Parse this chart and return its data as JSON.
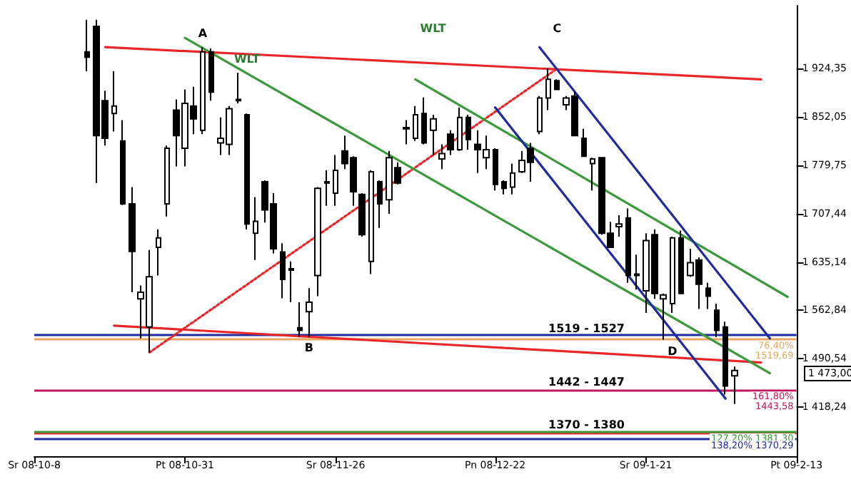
{
  "chart_data": {
    "type": "candlestick",
    "categories": [
      "Sr 08-10-8",
      null,
      null,
      null,
      null,
      null,
      null,
      null,
      null,
      null,
      null,
      null,
      null,
      null,
      null,
      null,
      null,
      "Pt 08-10-31",
      null,
      null,
      null,
      null,
      null,
      null,
      null,
      null,
      null,
      null,
      null,
      null,
      null,
      null,
      null,
      null,
      "Sr 08-11-26",
      null,
      null,
      null,
      null,
      null,
      null,
      null,
      null,
      null,
      null,
      null,
      null,
      null,
      null,
      null,
      null,
      null,
      "Pn 08-12-22",
      null,
      null,
      null,
      null,
      null,
      null,
      null,
      null,
      null,
      null,
      null,
      null,
      null,
      null,
      null,
      null,
      "Sr 09-1-21",
      null,
      null,
      null,
      null,
      null,
      null,
      null,
      null,
      null,
      null,
      null,
      null,
      null,
      null,
      null,
      null,
      "Pt 09-2-13"
    ],
    "series": [
      {
        "type": "candlestick",
        "color": "#000000",
        "ohlc": [
          null,
          null,
          null,
          null,
          null,
          null,
          [
            1949,
            1997,
            1920,
            1941
          ],
          [
            1987,
            1997,
            1753,
            1824
          ],
          [
            1876,
            1891,
            1809,
            1820
          ],
          [
            1857,
            1920,
            1830,
            1868
          ],
          [
            1816,
            1847,
            1720,
            1722
          ],
          [
            1722,
            1747,
            1590,
            1651
          ],
          [
            1580,
            1600,
            1521,
            1590
          ],
          [
            1538,
            1653,
            1500,
            1613
          ],
          [
            1657,
            1684,
            1615,
            1671
          ],
          [
            1722,
            1809,
            1703,
            1805
          ],
          [
            1862,
            1878,
            1778,
            1824
          ],
          [
            1805,
            1893,
            1778,
            1872
          ],
          [
            1868,
            1897,
            1826,
            1849
          ],
          [
            1832,
            1956,
            1826,
            1949
          ],
          [
            1949,
            1954,
            1876,
            1889
          ],
          [
            1813,
            1851,
            1795,
            1820
          ],
          [
            1811,
            1868,
            1795,
            1864
          ],
          [
            1876,
            1918,
            1872,
            1878
          ],
          [
            1855,
            1857,
            1684,
            1692
          ],
          [
            1678,
            1732,
            1638,
            1696
          ],
          [
            1755,
            1757,
            1694,
            1713
          ],
          [
            1722,
            1738,
            1648,
            1655
          ],
          [
            1650,
            1663,
            1581,
            1609
          ],
          [
            1625,
            1636,
            1575,
            1623
          ],
          [
            1537,
            1575,
            1523,
            1533
          ],
          [
            1561,
            1596,
            1523,
            1575
          ],
          [
            1615,
            1747,
            1584,
            1745
          ],
          [
            1753,
            1772,
            1719,
            1755
          ],
          [
            1738,
            1795,
            1719,
            1772
          ],
          [
            1801,
            1824,
            1774,
            1782
          ],
          [
            1791,
            1793,
            1719,
            1740
          ],
          [
            1736,
            1738,
            1673,
            1676
          ],
          [
            1636,
            1772,
            1617,
            1770
          ],
          [
            1755,
            1757,
            1686,
            1722
          ],
          [
            1728,
            1801,
            1707,
            1791
          ],
          [
            1776,
            1784,
            1751,
            1753
          ],
          [
            1834,
            1847,
            1811,
            1836
          ],
          [
            1820,
            1868,
            1816,
            1855
          ],
          [
            1857,
            1881,
            1811,
            1813
          ],
          [
            1832,
            1855,
            1795,
            1849
          ],
          [
            1789,
            1811,
            1774,
            1797
          ],
          [
            1826,
            1832,
            1795,
            1803
          ],
          [
            1803,
            1866,
            1801,
            1851
          ],
          [
            1851,
            1855,
            1803,
            1818
          ],
          [
            1811,
            1832,
            1768,
            1803
          ],
          [
            1791,
            1824,
            1774,
            1803
          ],
          [
            1803,
            1805,
            1742,
            1751
          ],
          [
            1755,
            1757,
            1736,
            1745
          ],
          [
            1747,
            1782,
            1736,
            1768
          ],
          [
            1770,
            1801,
            1768,
            1787
          ],
          [
            1805,
            1813,
            1755,
            1784
          ],
          [
            1830,
            1883,
            1826,
            1880
          ],
          [
            1880,
            1924,
            1862,
            1908
          ],
          [
            1906,
            1908,
            1893,
            1893
          ],
          [
            1870,
            1883,
            1862,
            1880
          ],
          [
            1883,
            1889,
            1824,
            1824
          ],
          [
            1820,
            1834,
            1793,
            1793
          ],
          [
            1782,
            1791,
            1742,
            1789
          ],
          [
            1791,
            1791,
            1676,
            1678
          ],
          [
            1678,
            1695,
            1657,
            1657
          ],
          [
            1688,
            1705,
            1673,
            1692
          ],
          [
            1701,
            1715,
            1604,
            1615
          ],
          [
            1617,
            1646,
            1594,
            1615
          ],
          [
            1592,
            1678,
            1559,
            1667
          ],
          [
            1676,
            1684,
            1580,
            1588
          ],
          [
            1580,
            1588,
            1519,
            1586
          ],
          [
            1573,
            1673,
            1559,
            1671
          ],
          [
            1671,
            1682,
            1588,
            1588
          ],
          [
            1615,
            1655,
            1613,
            1634
          ],
          [
            1638,
            1642,
            1565,
            1602
          ],
          [
            1596,
            1604,
            1565,
            1584
          ],
          [
            1563,
            1573,
            1523,
            1533
          ],
          [
            1538,
            1546,
            1437,
            1450
          ],
          [
            1465,
            1479,
            1423,
            1473
          ],
          null,
          null,
          null,
          null,
          null,
          null,
          null
        ]
      },
      {
        "type": "line",
        "color": "#e8262a",
        "values": [
          null,
          null,
          null,
          null,
          null,
          null,
          null,
          null,
          1956,
          null,
          null,
          null,
          null,
          null,
          null,
          null,
          null,
          null,
          null,
          null,
          null,
          null,
          null,
          null,
          null,
          null,
          null,
          null,
          null,
          null,
          null,
          null,
          null,
          null,
          null,
          null,
          null,
          null,
          null,
          null,
          null,
          null,
          null,
          null,
          null,
          null,
          null,
          null,
          null,
          null,
          null,
          null,
          null,
          null,
          null,
          null,
          null,
          null,
          null,
          null,
          null,
          null,
          null,
          null,
          null,
          null,
          null,
          null,
          null,
          null,
          null,
          null,
          null,
          null,
          null,
          null,
          null,
          null,
          null,
          null,
          null,
          null,
          1908,
          null,
          null,
          null,
          null
        ]
      },
      {
        "type": "line",
        "color": "#e8262a",
        "values": [
          null,
          null,
          null,
          null,
          null,
          null,
          null,
          null,
          null,
          1540,
          null,
          null,
          null,
          null,
          null,
          null,
          null,
          null,
          null,
          null,
          null,
          null,
          null,
          null,
          null,
          null,
          null,
          null,
          null,
          null,
          null,
          null,
          null,
          null,
          null,
          null,
          null,
          null,
          null,
          null,
          null,
          null,
          null,
          null,
          null,
          null,
          null,
          null,
          null,
          null,
          null,
          null,
          null,
          null,
          null,
          null,
          null,
          null,
          null,
          null,
          null,
          null,
          null,
          null,
          null,
          null,
          null,
          null,
          null,
          null,
          null,
          null,
          null,
          null,
          null,
          null,
          null,
          null,
          null,
          null,
          null,
          null,
          1485,
          null,
          null,
          null,
          null
        ]
      },
      {
        "type": "line",
        "color": "#e8262a",
        "line_style": "dotted",
        "values": [
          null,
          null,
          null,
          null,
          null,
          null,
          null,
          null,
          null,
          null,
          null,
          null,
          null,
          1500,
          null,
          null,
          null,
          null,
          null,
          null,
          null,
          null,
          null,
          null,
          null,
          null,
          null,
          null,
          null,
          null,
          null,
          null,
          null,
          null,
          null,
          null,
          null,
          null,
          null,
          null,
          null,
          null,
          null,
          null,
          null,
          null,
          null,
          null,
          null,
          null,
          null,
          null,
          null,
          null,
          null,
          null,
          null,
          null,
          null,
          1924,
          null,
          null,
          null,
          null,
          null,
          null,
          null,
          null,
          null,
          null,
          null,
          null,
          null,
          null,
          null,
          null,
          null,
          null,
          null,
          null,
          null,
          null,
          null,
          null,
          null,
          null,
          null
        ]
      },
      {
        "type": "line",
        "color": "#3a9a3a",
        "values": [
          null,
          null,
          null,
          null,
          null,
          null,
          null,
          null,
          null,
          null,
          null,
          null,
          null,
          null,
          null,
          null,
          null,
          1970,
          null,
          null,
          null,
          null,
          null,
          null,
          null,
          null,
          null,
          null,
          null,
          null,
          null,
          null,
          null,
          null,
          null,
          null,
          null,
          null,
          null,
          null,
          null,
          null,
          null,
          null,
          null,
          null,
          null,
          null,
          null,
          null,
          null,
          null,
          null,
          null,
          null,
          null,
          null,
          null,
          null,
          null,
          null,
          null,
          null,
          null,
          null,
          null,
          null,
          null,
          null,
          null,
          null,
          null,
          null,
          null,
          null,
          null,
          null,
          null,
          null,
          null,
          null,
          null,
          null,
          1469,
          null,
          null,
          null
        ]
      },
      {
        "type": "line",
        "color": "#3a9a3a",
        "values": [
          null,
          null,
          null,
          null,
          null,
          null,
          null,
          null,
          null,
          null,
          null,
          null,
          null,
          null,
          null,
          null,
          null,
          null,
          null,
          null,
          null,
          null,
          null,
          null,
          null,
          null,
          null,
          null,
          null,
          null,
          null,
          null,
          null,
          null,
          null,
          null,
          null,
          null,
          null,
          null,
          null,
          null,
          null,
          1908,
          null,
          null,
          null,
          null,
          null,
          null,
          null,
          null,
          null,
          null,
          null,
          null,
          null,
          null,
          null,
          null,
          null,
          null,
          null,
          null,
          null,
          null,
          null,
          null,
          null,
          null,
          null,
          null,
          null,
          null,
          null,
          null,
          null,
          null,
          null,
          null,
          null,
          null,
          null,
          null,
          null,
          1583,
          null
        ]
      },
      {
        "type": "line",
        "color": "#1f2a9c",
        "values": [
          null,
          null,
          null,
          null,
          null,
          null,
          null,
          null,
          null,
          null,
          null,
          null,
          null,
          null,
          null,
          null,
          null,
          null,
          null,
          null,
          null,
          null,
          null,
          null,
          null,
          null,
          null,
          null,
          null,
          null,
          null,
          null,
          null,
          null,
          null,
          null,
          null,
          null,
          null,
          null,
          null,
          null,
          null,
          null,
          null,
          null,
          null,
          null,
          null,
          null,
          null,
          null,
          null,
          null,
          null,
          null,
          null,
          1956,
          null,
          null,
          null,
          null,
          null,
          null,
          null,
          null,
          null,
          null,
          null,
          null,
          null,
          null,
          null,
          null,
          null,
          null,
          null,
          null,
          null,
          null,
          null,
          null,
          null,
          1521,
          null,
          null,
          null
        ]
      },
      {
        "type": "line",
        "color": "#1f2a9c",
        "values": [
          null,
          null,
          null,
          null,
          null,
          null,
          null,
          null,
          null,
          null,
          null,
          null,
          null,
          null,
          null,
          null,
          null,
          null,
          null,
          null,
          null,
          null,
          null,
          null,
          null,
          null,
          null,
          null,
          null,
          null,
          null,
          null,
          null,
          null,
          null,
          null,
          null,
          null,
          null,
          null,
          null,
          null,
          null,
          null,
          null,
          null,
          null,
          null,
          null,
          null,
          null,
          null,
          1866,
          null,
          null,
          null,
          null,
          null,
          null,
          null,
          null,
          null,
          null,
          null,
          null,
          null,
          null,
          null,
          null,
          null,
          null,
          null,
          null,
          null,
          null,
          null,
          null,
          null,
          1431,
          null,
          null,
          null,
          null,
          null,
          null,
          null,
          null
        ]
      }
    ],
    "ylim": [
      1345,
      2018
    ],
    "yticks": [
      {
        "value": 1418.24,
        "label": "1 418,24"
      },
      {
        "value": 1490.54,
        "label": "1 490,54"
      },
      {
        "value": 1562.84,
        "label": "1 562,84"
      },
      {
        "value": 1635.14,
        "label": "1 635,14"
      },
      {
        "value": 1707.44,
        "label": "1 707,44"
      },
      {
        "value": 1779.75,
        "label": "1 779,75"
      },
      {
        "value": 1852.05,
        "label": "1 852,05"
      },
      {
        "value": 1924.35,
        "label": "1 924,35"
      }
    ],
    "ref_lines": [
      {
        "axis": "y",
        "value": 1527,
        "color": "#1f2a9c"
      },
      {
        "axis": "y",
        "value": 1519.69,
        "label": "76,40% 1519,69",
        "color": "#e8a860"
      },
      {
        "axis": "y",
        "value": 1443.58,
        "label": "161,80% 1443,58",
        "color": "#c2185b"
      },
      {
        "axis": "y",
        "value": 1380,
        "color": "#e8262a"
      },
      {
        "axis": "y",
        "value": 1381.3,
        "label": "127,20% 1381,30",
        "color": "#3a9a3a"
      },
      {
        "axis": "y",
        "value": 1370.29,
        "label": "138,20% 1370,29",
        "color": "#1f2a9c"
      }
    ],
    "annotations": [
      {
        "text": "A",
        "y": 1968
      },
      {
        "text": "WLT",
        "y": 1930
      },
      "WLT",
      {
        "text": "B",
        "y": 1515
      },
      "C",
      {
        "text": "D",
        "y": 1510
      },
      {
        "text": "1519 - 1527",
        "y": 1527
      },
      {
        "text": "1442 - 1447",
        "y": 1447
      },
      {
        "text": "1370 - 1380",
        "y": 1383
      },
      "1 473,00"
    ],
    "marker": "none",
    "line_style": "solid"
  }
}
